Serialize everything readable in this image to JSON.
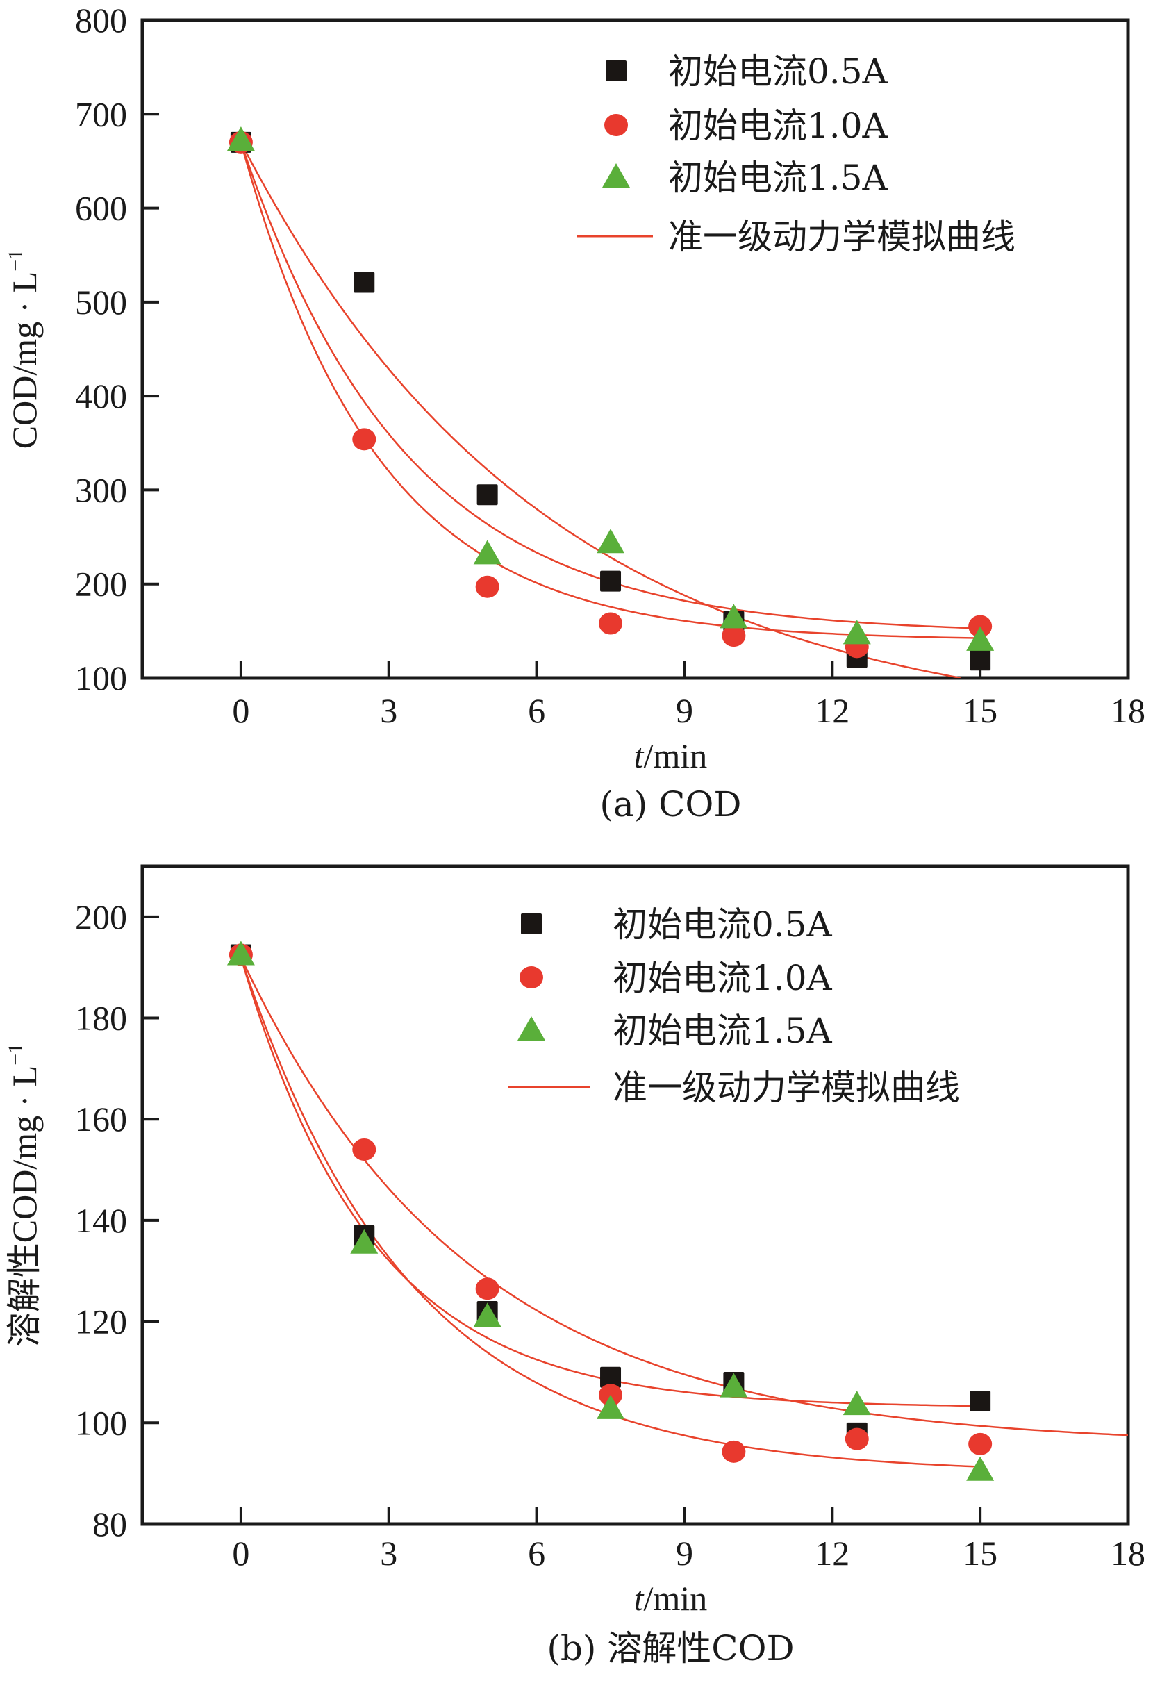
{
  "chart_data": [
    {
      "type": "scatter",
      "panel": "a",
      "caption": "(a) COD",
      "xlabel_italic": "t",
      "xlabel_rest": "/min",
      "ylabel": "COD/mg · L",
      "ylabel_sup": "−1",
      "xlim": [
        -2,
        18
      ],
      "ylim": [
        100,
        800
      ],
      "xticks": [
        0,
        3,
        6,
        9,
        12,
        15,
        18
      ],
      "yticks": [
        100,
        200,
        300,
        400,
        500,
        600,
        700,
        800
      ],
      "grid": false,
      "legend_position": "top-right",
      "series": [
        {
          "name": "初始电流0.5A",
          "marker": "square",
          "color": "#1a1614",
          "x": [
            0,
            2.5,
            5,
            7.5,
            10,
            12.5,
            15
          ],
          "y": [
            670,
            521,
            295,
            203,
            160,
            122,
            119
          ],
          "fit": {
            "y0": 670,
            "y_inf": 40,
            "k": 0.161,
            "t_end": 14.6
          }
        },
        {
          "name": "初始电流1.0A",
          "marker": "circle",
          "color": "#e8392e",
          "x": [
            0,
            2.5,
            5,
            7.5,
            10,
            12.5,
            15
          ],
          "y": [
            670,
            354,
            197,
            158,
            145,
            133,
            155
          ],
          "fit": {
            "y0": 670,
            "y_inf": 140,
            "k": 0.36,
            "t_end": 15
          }
        },
        {
          "name": "初始电流1.5A",
          "marker": "triangle",
          "color": "#5aaf3a",
          "x": [
            0,
            2.5,
            5,
            7.5,
            10,
            12.5,
            15
          ],
          "y": [
            672,
            null,
            232,
            244,
            164,
            147,
            140
          ],
          "fit": {
            "y0": 670,
            "y_inf": 147,
            "k": 0.3,
            "t_end": 15
          }
        }
      ],
      "fit_legend": "准一级动力学模拟曲线",
      "fit_color": "#e8432c"
    },
    {
      "type": "scatter",
      "panel": "b",
      "caption": "(b) 溶解性COD",
      "xlabel_italic": "t",
      "xlabel_rest": "/min",
      "ylabel": "溶解性COD/mg · L",
      "ylabel_sup": "−1",
      "xlim": [
        -2,
        18
      ],
      "ylim": [
        80,
        210
      ],
      "xticks": [
        0,
        3,
        6,
        9,
        12,
        15,
        18
      ],
      "yticks": [
        80,
        100,
        120,
        140,
        160,
        180,
        200
      ],
      "grid": false,
      "legend_position": "top-right",
      "series": [
        {
          "name": "初始电流0.5A",
          "marker": "square",
          "color": "#1a1614",
          "x": [
            0,
            2.5,
            5,
            7.5,
            10,
            12.5,
            15
          ],
          "y": [
            192.5,
            137,
            122,
            109,
            108,
            98,
            104.3
          ],
          "fit": {
            "y0": 192,
            "y_inf": 103,
            "k": 0.373,
            "t_end": 15
          }
        },
        {
          "name": "初始电流1.0A",
          "marker": "circle",
          "color": "#e8392e",
          "x": [
            0,
            2.5,
            5,
            7.5,
            10,
            12.5,
            15
          ],
          "y": [
            192.5,
            154,
            126.5,
            105.5,
            94.3,
            96.8,
            95.8
          ],
          "fit": {
            "y0": 192,
            "y_inf": 95.5,
            "k": 0.214,
            "t_end": 18
          }
        },
        {
          "name": "初始电流1.5A",
          "marker": "triangle",
          "color": "#5aaf3a",
          "x": [
            0,
            2.5,
            5,
            7.5,
            10,
            12.5,
            15
          ],
          "y": [
            192.5,
            135.5,
            121,
            102.8,
            107.1,
            103.6,
            90.6
          ],
          "fit": {
            "y0": 192,
            "y_inf": 90,
            "k": 0.29,
            "t_end": 15
          }
        }
      ],
      "fit_legend": "准一级动力学模拟曲线",
      "fit_color": "#e8432c"
    }
  ]
}
